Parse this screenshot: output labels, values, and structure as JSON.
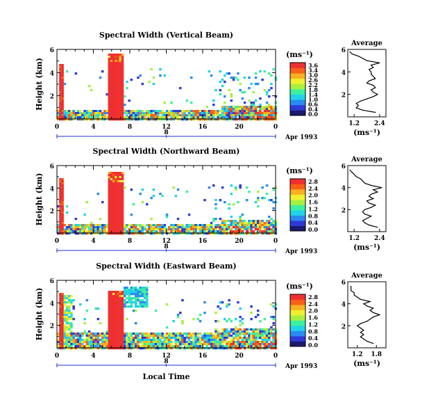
{
  "chart_data": [
    {
      "type": "heatmap",
      "title": "Spectral Width (Vertical Beam)",
      "ylabel": "Height (km)",
      "yticks": [
        "6",
        "4",
        "2"
      ],
      "xticks": [
        "0",
        "4",
        "8",
        "12",
        "16",
        "20",
        "0"
      ],
      "date_day": "8",
      "date_label": "Apr 1993",
      "xlim": [
        0,
        24
      ],
      "ylim": [
        0,
        6
      ],
      "colorbar": {
        "unit": "(ms⁻¹)",
        "labels": [
          "3.6",
          "3.4",
          "3.0",
          "2.6",
          "2.2",
          "1.8",
          "1.4",
          "1.0",
          "0.6",
          "0.4",
          "0.0"
        ],
        "range": [
          0,
          3.6
        ]
      },
      "average": {
        "title": "Average",
        "xlabel": "(ms⁻¹)",
        "xticks": [
          "1.2",
          "2.4"
        ],
        "xlim": [
          0.9,
          2.7
        ],
        "yticks": [
          "6",
          "4",
          "2"
        ],
        "profile": [
          {
            "h": 0.4,
            "v": 2.2
          },
          {
            "h": 0.6,
            "v": 1.6
          },
          {
            "h": 0.8,
            "v": 1.3
          },
          {
            "h": 1.0,
            "v": 1.4
          },
          {
            "h": 1.2,
            "v": 1.3
          },
          {
            "h": 1.4,
            "v": 1.5
          },
          {
            "h": 1.6,
            "v": 1.8
          },
          {
            "h": 1.8,
            "v": 2.1
          },
          {
            "h": 2.0,
            "v": 2.3
          },
          {
            "h": 2.2,
            "v": 2.1
          },
          {
            "h": 2.4,
            "v": 2.0
          },
          {
            "h": 2.6,
            "v": 2.2
          },
          {
            "h": 2.8,
            "v": 2.1
          },
          {
            "h": 3.0,
            "v": 1.8
          },
          {
            "h": 3.2,
            "v": 1.9
          },
          {
            "h": 3.4,
            "v": 2.2
          },
          {
            "h": 3.6,
            "v": 2.1
          },
          {
            "h": 3.8,
            "v": 2.0
          },
          {
            "h": 4.0,
            "v": 2.0
          },
          {
            "h": 4.2,
            "v": 1.9
          },
          {
            "h": 4.4,
            "v": 2.1
          },
          {
            "h": 4.6,
            "v": 2.0
          },
          {
            "h": 4.8,
            "v": 2.4
          },
          {
            "h": 5.0,
            "v": 1.8
          },
          {
            "h": 5.2,
            "v": 1.6
          },
          {
            "h": 5.4,
            "v": 1.4
          },
          {
            "h": 5.6,
            "v": 1.1
          },
          {
            "h": 5.8,
            "v": 1.0
          }
        ]
      }
    },
    {
      "type": "heatmap",
      "title": "Spectral Width (Northward Beam)",
      "ylabel": "Height (km)",
      "yticks": [
        "6",
        "4",
        "2"
      ],
      "xticks": [
        "0",
        "4",
        "8",
        "12",
        "16",
        "20",
        "0"
      ],
      "date_day": "8",
      "date_label": "Apr 1993",
      "xlim": [
        0,
        24
      ],
      "ylim": [
        0,
        6
      ],
      "colorbar": {
        "unit": "(ms⁻¹)",
        "labels": [
          "2.8",
          "2.4",
          "2.0",
          "1.6",
          "1.2",
          "0.8",
          "0.4",
          "0.0"
        ],
        "range": [
          0,
          2.8
        ]
      },
      "average": {
        "title": "Average",
        "xlabel": "(ms⁻¹)",
        "xticks": [
          "1.2",
          "2.4"
        ],
        "xlim": [
          0.9,
          2.7
        ],
        "yticks": [
          "6",
          "4",
          "2"
        ],
        "profile": [
          {
            "h": 0.4,
            "v": 2.3
          },
          {
            "h": 0.6,
            "v": 1.9
          },
          {
            "h": 0.8,
            "v": 1.7
          },
          {
            "h": 1.0,
            "v": 1.6
          },
          {
            "h": 1.2,
            "v": 1.8
          },
          {
            "h": 1.4,
            "v": 2.0
          },
          {
            "h": 1.6,
            "v": 1.7
          },
          {
            "h": 1.8,
            "v": 1.6
          },
          {
            "h": 2.0,
            "v": 1.7
          },
          {
            "h": 2.2,
            "v": 2.0
          },
          {
            "h": 2.4,
            "v": 2.2
          },
          {
            "h": 2.6,
            "v": 1.9
          },
          {
            "h": 2.8,
            "v": 1.8
          },
          {
            "h": 3.0,
            "v": 2.1
          },
          {
            "h": 3.2,
            "v": 1.9
          },
          {
            "h": 3.4,
            "v": 2.0
          },
          {
            "h": 3.6,
            "v": 2.3
          },
          {
            "h": 3.8,
            "v": 2.1
          },
          {
            "h": 4.0,
            "v": 2.5
          },
          {
            "h": 4.2,
            "v": 2.0
          },
          {
            "h": 4.4,
            "v": 1.7
          },
          {
            "h": 4.6,
            "v": 1.6
          },
          {
            "h": 4.8,
            "v": 1.5
          },
          {
            "h": 5.0,
            "v": 1.3
          },
          {
            "h": 5.2,
            "v": 1.2
          },
          {
            "h": 5.4,
            "v": 1.1
          },
          {
            "h": 5.6,
            "v": 1.0
          }
        ]
      }
    },
    {
      "type": "heatmap",
      "title": "Spectral Width (Eastward Beam)",
      "ylabel": "Height (km)",
      "yticks": [
        "6",
        "4",
        "2"
      ],
      "xticks": [
        "0",
        "4",
        "8",
        "12",
        "16",
        "20",
        "0"
      ],
      "date_day": "8",
      "date_label": "Apr 1993",
      "xlabel": "Local Time",
      "xlim": [
        0,
        24
      ],
      "ylim": [
        0,
        6
      ],
      "colorbar": {
        "unit": "(ms⁻¹)",
        "labels": [
          "2.8",
          "2.4",
          "2.0",
          "1.6",
          "1.2",
          "0.8",
          "0.4",
          "0.0"
        ],
        "range": [
          0,
          2.8
        ]
      },
      "average": {
        "title": "Average",
        "xlabel": "(ms⁻¹)",
        "xticks": [
          "1.2",
          "1.8"
        ],
        "xlim": [
          0.9,
          2.1
        ],
        "yticks": [
          "6",
          "4",
          "2"
        ],
        "profile": [
          {
            "h": 0.4,
            "v": 1.7
          },
          {
            "h": 0.6,
            "v": 1.5
          },
          {
            "h": 0.8,
            "v": 1.4
          },
          {
            "h": 1.0,
            "v": 1.3
          },
          {
            "h": 1.2,
            "v": 1.4
          },
          {
            "h": 1.4,
            "v": 1.3
          },
          {
            "h": 1.6,
            "v": 1.4
          },
          {
            "h": 1.8,
            "v": 1.3
          },
          {
            "h": 2.0,
            "v": 1.2
          },
          {
            "h": 2.2,
            "v": 1.3
          },
          {
            "h": 2.4,
            "v": 1.5
          },
          {
            "h": 2.6,
            "v": 1.6
          },
          {
            "h": 2.8,
            "v": 1.7
          },
          {
            "h": 3.0,
            "v": 1.9
          },
          {
            "h": 3.2,
            "v": 1.7
          },
          {
            "h": 3.4,
            "v": 1.6
          },
          {
            "h": 3.6,
            "v": 1.7
          },
          {
            "h": 3.8,
            "v": 1.5
          },
          {
            "h": 4.0,
            "v": 1.4
          },
          {
            "h": 4.2,
            "v": 1.6
          },
          {
            "h": 4.4,
            "v": 1.3
          },
          {
            "h": 4.6,
            "v": 1.2
          },
          {
            "h": 4.8,
            "v": 1.1
          },
          {
            "h": 5.0,
            "v": 1.1
          },
          {
            "h": 5.2,
            "v": 1.0
          },
          {
            "h": 5.4,
            "v": 1.0
          },
          {
            "h": 5.6,
            "v": 1.0
          }
        ]
      }
    }
  ],
  "colors": {
    "scale": [
      "#1a1a6e",
      "#2e3bd8",
      "#2a8cf0",
      "#21d3e8",
      "#3cf0a0",
      "#a8f040",
      "#f0f030",
      "#f8b020",
      "#f86018",
      "#f03030"
    ],
    "axis": "#000000",
    "date_axis": "#1c2fd0"
  }
}
